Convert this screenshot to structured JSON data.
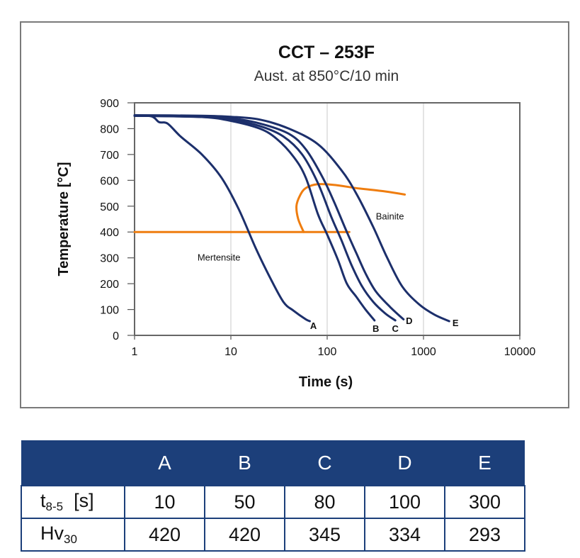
{
  "chart_data": {
    "type": "line",
    "title": "CCT – 253F",
    "subtitle": "Aust. at 850°C/10 min",
    "xlabel": "Time (s)",
    "ylabel": "Temperature [°C]",
    "x_scale": "log",
    "xlim": [
      1,
      10000
    ],
    "ylim": [
      0,
      900
    ],
    "x_ticks": [
      "1",
      "10",
      "100",
      "1000",
      "10000"
    ],
    "y_ticks": [
      "0",
      "100",
      "200",
      "300",
      "400",
      "500",
      "600",
      "700",
      "800",
      "900"
    ],
    "grid": true,
    "series": [
      {
        "name": "A",
        "color": "#1c2f6b",
        "points": [
          [
            1,
            850
          ],
          [
            1.5,
            848
          ],
          [
            1.8,
            825
          ],
          [
            2.2,
            820
          ],
          [
            3,
            770
          ],
          [
            5,
            700
          ],
          [
            8,
            610
          ],
          [
            12,
            490
          ],
          [
            18,
            340
          ],
          [
            25,
            230
          ],
          [
            35,
            130
          ],
          [
            45,
            95
          ],
          [
            60,
            62
          ],
          [
            66,
            55
          ]
        ]
      },
      {
        "name": "B",
        "color": "#1c2f6b",
        "points": [
          [
            1,
            850
          ],
          [
            5,
            845
          ],
          [
            10,
            830
          ],
          [
            20,
            800
          ],
          [
            30,
            760
          ],
          [
            45,
            690
          ],
          [
            60,
            610
          ],
          [
            80,
            470
          ],
          [
            100,
            390
          ],
          [
            130,
            290
          ],
          [
            160,
            200
          ],
          [
            200,
            150
          ],
          [
            250,
            100
          ],
          [
            310,
            58
          ]
        ]
      },
      {
        "name": "C",
        "color": "#1c2f6b",
        "points": [
          [
            1,
            850
          ],
          [
            5,
            845
          ],
          [
            10,
            835
          ],
          [
            20,
            810
          ],
          [
            35,
            770
          ],
          [
            55,
            700
          ],
          [
            80,
            590
          ],
          [
            110,
            460
          ],
          [
            140,
            370
          ],
          [
            180,
            270
          ],
          [
            230,
            190
          ],
          [
            300,
            130
          ],
          [
            400,
            85
          ],
          [
            510,
            58
          ]
        ]
      },
      {
        "name": "D",
        "color": "#1c2f6b",
        "points": [
          [
            1,
            850
          ],
          [
            5,
            847
          ],
          [
            10,
            840
          ],
          [
            20,
            820
          ],
          [
            40,
            780
          ],
          [
            60,
            720
          ],
          [
            90,
            610
          ],
          [
            120,
            510
          ],
          [
            160,
            400
          ],
          [
            200,
            320
          ],
          [
            250,
            240
          ],
          [
            320,
            170
          ],
          [
            450,
            110
          ],
          [
            620,
            62
          ]
        ]
      },
      {
        "name": "E",
        "color": "#1c2f6b",
        "points": [
          [
            1,
            852
          ],
          [
            5,
            850
          ],
          [
            10,
            846
          ],
          [
            20,
            835
          ],
          [
            40,
            800
          ],
          [
            80,
            740
          ],
          [
            140,
            640
          ],
          [
            200,
            550
          ],
          [
            300,
            420
          ],
          [
            420,
            300
          ],
          [
            600,
            190
          ],
          [
            900,
            120
          ],
          [
            1300,
            80
          ],
          [
            1850,
            55
          ]
        ]
      }
    ],
    "boundaries": [
      {
        "label": "Bainite",
        "color": "#ef7d0f",
        "points": [
          [
            57,
            400
          ],
          [
            50,
            450
          ],
          [
            48,
            500
          ],
          [
            52,
            540
          ],
          [
            60,
            570
          ],
          [
            80,
            585
          ],
          [
            120,
            582
          ],
          [
            200,
            570
          ],
          [
            400,
            557
          ],
          [
            640,
            545
          ]
        ]
      },
      {
        "label": "",
        "color": "#ef7d0f",
        "points": [
          [
            1,
            400
          ],
          [
            170,
            400
          ]
        ]
      }
    ],
    "annotations": [
      {
        "text": "Bainite",
        "x": 320,
        "y": 460
      },
      {
        "text": "Mertensite",
        "x": 4.5,
        "y": 300
      },
      {
        "text": "A",
        "x": 72,
        "y": 38
      },
      {
        "text": "B",
        "x": 320,
        "y": 28
      },
      {
        "text": "C",
        "x": 510,
        "y": 28
      },
      {
        "text": "D",
        "x": 710,
        "y": 58
      },
      {
        "text": "E",
        "x": 2150,
        "y": 50
      }
    ]
  },
  "table": {
    "columns": [
      "A",
      "B",
      "C",
      "D",
      "E"
    ],
    "rows": [
      {
        "label_main": "t",
        "label_sub": "8-5",
        "label_suffix": "[s]",
        "values": [
          "10",
          "50",
          "80",
          "100",
          "300"
        ]
      },
      {
        "label_main": "Hv",
        "label_sub": "30",
        "label_suffix": "",
        "values": [
          "420",
          "420",
          "345",
          "334",
          "293"
        ]
      }
    ]
  }
}
